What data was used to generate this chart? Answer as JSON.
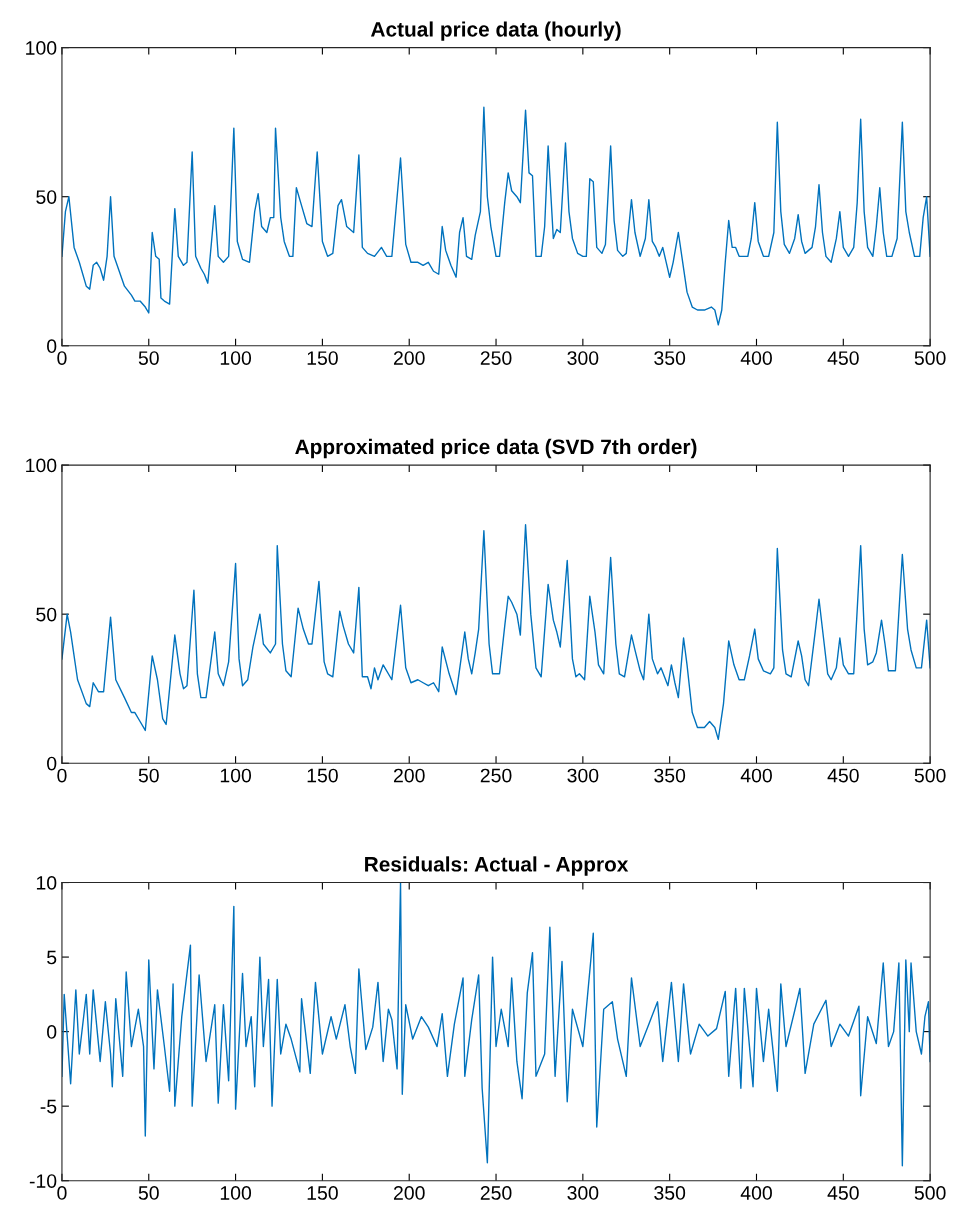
{
  "chart_data": [
    {
      "type": "line",
      "title": "Actual price data (hourly)",
      "xlim": [
        0,
        500
      ],
      "ylim": [
        0,
        100
      ],
      "xticks": [
        0,
        50,
        100,
        150,
        200,
        250,
        300,
        350,
        400,
        450,
        500
      ],
      "yticks": [
        0,
        50,
        100
      ],
      "grid": false,
      "series": [
        {
          "color": "#0072bd",
          "x": [
            0,
            2,
            4,
            7,
            10,
            14,
            16,
            18,
            20,
            22,
            24,
            26,
            28,
            30,
            33,
            36,
            40,
            42,
            45,
            48,
            50,
            52,
            54,
            56,
            57,
            59,
            62,
            65,
            67,
            70,
            72,
            75,
            77,
            80,
            82,
            84,
            88,
            90,
            93,
            96,
            99,
            101,
            104,
            108,
            111,
            113,
            115,
            118,
            120,
            122,
            123,
            126,
            128,
            131,
            133,
            135,
            138,
            141,
            144,
            147,
            150,
            153,
            156,
            159,
            161,
            164,
            168,
            171,
            173,
            176,
            180,
            184,
            187,
            190,
            195,
            198,
            201,
            205,
            208,
            211,
            214,
            217,
            219,
            221,
            224,
            227,
            229,
            231,
            233,
            236,
            238,
            241,
            243,
            245,
            247,
            250,
            252,
            255,
            257,
            259,
            262,
            264,
            267,
            269,
            271,
            273,
            276,
            278,
            280,
            283,
            285,
            287,
            290,
            292,
            294,
            297,
            300,
            302,
            304,
            306,
            308,
            311,
            313,
            316,
            318,
            320,
            323,
            325,
            328,
            330,
            333,
            336,
            338,
            340,
            342,
            344,
            346,
            348,
            350,
            352,
            355,
            357,
            360,
            363,
            366,
            370,
            374,
            376,
            378,
            380,
            382,
            384,
            386,
            388,
            390,
            392,
            395,
            397,
            399,
            401,
            404,
            407,
            410,
            412,
            414,
            416,
            419,
            422,
            424,
            426,
            428,
            432,
            434,
            436,
            438,
            440,
            443,
            446,
            448,
            450,
            453,
            456,
            458,
            460,
            462,
            464,
            467,
            469,
            471,
            473,
            475,
            478,
            481,
            484,
            486,
            488,
            491,
            494,
            496,
            498,
            500
          ],
          "values": [
            30,
            45,
            50,
            33,
            28,
            20,
            19,
            27,
            28,
            26,
            22,
            30,
            50,
            30,
            25,
            20,
            17,
            15,
            15,
            13,
            11,
            38,
            30,
            29,
            16,
            15,
            14,
            46,
            30,
            27,
            28,
            65,
            30,
            26,
            24,
            21,
            47,
            30,
            28,
            30,
            73,
            35,
            29,
            28,
            45,
            51,
            40,
            38,
            43,
            43,
            73,
            43,
            35,
            30,
            30,
            53,
            47,
            41,
            40,
            65,
            35,
            30,
            31,
            47,
            49,
            40,
            38,
            64,
            33,
            31,
            30,
            33,
            30,
            30,
            63,
            34,
            28,
            28,
            27,
            28,
            25,
            24,
            40,
            32,
            27,
            23,
            38,
            43,
            30,
            29,
            37,
            45,
            80,
            50,
            40,
            30,
            30,
            48,
            58,
            52,
            50,
            48,
            79,
            58,
            57,
            30,
            30,
            40,
            67,
            36,
            39,
            38,
            68,
            45,
            36,
            31,
            30,
            30,
            56,
            55,
            33,
            31,
            34,
            67,
            42,
            32,
            30,
            31,
            49,
            38,
            30,
            36,
            49,
            35,
            33,
            30,
            33,
            28,
            23,
            28,
            38,
            30,
            18,
            13,
            12,
            12,
            13,
            12,
            7,
            12,
            28,
            42,
            33,
            33,
            30,
            30,
            30,
            36,
            48,
            35,
            30,
            30,
            38,
            75,
            45,
            34,
            31,
            36,
            44,
            35,
            31,
            33,
            40,
            54,
            38,
            30,
            28,
            36,
            45,
            33,
            30,
            33,
            48,
            76,
            45,
            33,
            30,
            40,
            53,
            38,
            30,
            30,
            36,
            75,
            45,
            38,
            30,
            30,
            43,
            50,
            30
          ]
        }
      ]
    },
    {
      "type": "line",
      "title": "Approximated price data (SVD 7th order)",
      "xlim": [
        0,
        500
      ],
      "ylim": [
        0,
        100
      ],
      "xticks": [
        0,
        50,
        100,
        150,
        200,
        250,
        300,
        350,
        400,
        450,
        500
      ],
      "yticks": [
        0,
        50,
        100
      ],
      "grid": false,
      "series": [
        {
          "color": "#0072bd",
          "x": [
            0,
            3,
            5,
            9,
            14,
            16,
            18,
            21,
            24,
            28,
            31,
            36,
            40,
            42,
            45,
            48,
            52,
            55,
            58,
            60,
            65,
            68,
            70,
            72,
            76,
            78,
            80,
            83,
            88,
            90,
            93,
            96,
            100,
            102,
            104,
            107,
            110,
            114,
            116,
            120,
            123,
            124,
            127,
            129,
            132,
            136,
            139,
            142,
            144,
            148,
            151,
            153,
            156,
            160,
            162,
            165,
            168,
            171,
            173,
            176,
            178,
            180,
            182,
            185,
            190,
            195,
            198,
            201,
            205,
            208,
            211,
            214,
            217,
            219,
            223,
            227,
            232,
            234,
            236,
            238,
            240,
            243,
            246,
            248,
            252,
            255,
            257,
            259,
            262,
            264,
            267,
            270,
            273,
            276,
            280,
            283,
            285,
            287,
            291,
            294,
            296,
            298,
            301,
            304,
            307,
            309,
            312,
            316,
            319,
            321,
            324,
            328,
            330,
            333,
            335,
            338,
            340,
            343,
            345,
            347,
            349,
            351,
            353,
            355,
            358,
            360,
            363,
            366,
            370,
            373,
            376,
            378,
            381,
            384,
            387,
            390,
            393,
            396,
            399,
            401,
            404,
            408,
            410,
            412,
            415,
            417,
            420,
            424,
            426,
            428,
            430,
            434,
            436,
            439,
            441,
            443,
            446,
            448,
            450,
            453,
            456,
            460,
            462,
            464,
            467,
            469,
            472,
            474,
            476,
            480,
            484,
            487,
            489,
            492,
            495,
            498,
            500
          ],
          "values": [
            35,
            50,
            44,
            28,
            20,
            19,
            27,
            24,
            24,
            49,
            28,
            22,
            17,
            17,
            14,
            11,
            36,
            28,
            15,
            13,
            43,
            30,
            25,
            26,
            58,
            30,
            22,
            22,
            44,
            30,
            26,
            34,
            67,
            35,
            26,
            28,
            39,
            50,
            40,
            37,
            40,
            73,
            40,
            31,
            29,
            52,
            45,
            40,
            40,
            61,
            34,
            30,
            29,
            51,
            46,
            40,
            37,
            59,
            29,
            29,
            25,
            32,
            28,
            33,
            28,
            53,
            32,
            27,
            28,
            27,
            26,
            27,
            24,
            39,
            30,
            23,
            44,
            35,
            30,
            37,
            45,
            78,
            40,
            30,
            30,
            46,
            56,
            54,
            50,
            43,
            80,
            50,
            32,
            29,
            60,
            48,
            44,
            39,
            68,
            35,
            29,
            30,
            28,
            56,
            44,
            33,
            30,
            69,
            40,
            30,
            29,
            43,
            38,
            31,
            28,
            50,
            35,
            30,
            32,
            29,
            26,
            33,
            27,
            22,
            42,
            33,
            17,
            12,
            12,
            14,
            12,
            8,
            20,
            41,
            33,
            28,
            28,
            36,
            45,
            35,
            31,
            30,
            32,
            72,
            38,
            30,
            29,
            41,
            36,
            28,
            26,
            45,
            55,
            40,
            30,
            28,
            32,
            42,
            33,
            30,
            30,
            73,
            45,
            33,
            34,
            37,
            48,
            40,
            31,
            31,
            70,
            45,
            38,
            32,
            32,
            48,
            32
          ]
        }
      ]
    },
    {
      "type": "line",
      "title": "Residuals: Actual - Approx",
      "xlim": [
        0,
        500
      ],
      "ylim": [
        -10,
        10
      ],
      "xticks": [
        0,
        50,
        100,
        150,
        200,
        250,
        300,
        350,
        400,
        450,
        500
      ],
      "yticks": [
        -10,
        -5,
        0,
        5,
        10
      ],
      "grid": false,
      "series": [
        {
          "color": "#0072bd",
          "x": [
            0,
            1.3,
            5,
            8,
            10,
            14,
            16,
            18,
            22,
            25,
            28,
            29,
            31,
            35,
            37,
            40,
            44,
            47,
            48,
            50,
            53,
            55,
            59,
            62,
            64,
            65,
            69,
            74,
            75,
            79,
            83,
            88,
            90,
            93,
            96,
            99,
            100,
            104,
            106,
            109,
            111,
            114,
            116,
            119,
            121,
            124,
            126,
            129,
            132,
            137,
            138,
            143,
            146,
            150,
            155,
            158,
            163,
            166,
            169,
            171,
            175,
            179,
            182,
            185,
            188,
            190,
            193,
            195,
            196,
            198,
            202,
            207,
            211,
            216,
            219,
            222,
            226,
            231,
            232,
            236,
            240,
            242,
            245,
            248,
            250,
            253,
            257,
            259,
            262,
            265,
            268,
            271,
            273,
            278,
            281,
            284,
            288,
            291,
            294,
            300,
            306,
            308,
            312,
            317,
            320,
            325,
            328,
            333,
            338,
            343,
            346,
            351,
            355,
            358,
            362,
            367,
            372,
            377,
            382,
            384,
            388,
            391,
            393,
            398,
            400,
            404,
            407,
            412,
            414,
            417,
            422,
            425,
            428,
            433,
            440,
            443,
            448,
            453,
            459,
            460,
            464,
            469,
            473,
            476,
            479,
            482,
            484,
            486,
            488,
            489,
            492,
            495,
            497,
            499,
            500
          ],
          "values": [
            -3,
            2.5,
            -3.5,
            2.8,
            -1.5,
            2.5,
            -1.5,
            2.8,
            -2,
            2,
            -1.5,
            -3.7,
            2.2,
            -3,
            4,
            -1,
            1.5,
            -1,
            -7,
            4.8,
            -2.5,
            2.8,
            -1,
            -4,
            3.2,
            -5,
            1,
            5.8,
            -5,
            3.8,
            -2,
            1.8,
            -4.8,
            1.8,
            -3.3,
            8.4,
            -5.2,
            3.9,
            -1,
            1,
            -3.7,
            5,
            -1,
            3.5,
            -5,
            3.5,
            -1.5,
            0.5,
            -0.5,
            -2.7,
            2.2,
            -2.8,
            3.3,
            -1.5,
            1,
            -0.5,
            1.8,
            -1,
            -2.8,
            4.2,
            -1.2,
            0.3,
            3.3,
            -2,
            1.5,
            0.8,
            -2.5,
            10,
            -4.2,
            1.8,
            -0.5,
            1,
            0.3,
            -1,
            1.2,
            -3,
            0.5,
            3.6,
            -3,
            0.8,
            3.8,
            -3.8,
            -8.8,
            5,
            -1,
            1.5,
            -1,
            3.6,
            -2,
            -4.5,
            2.6,
            5.3,
            -3,
            -1.5,
            7,
            -3,
            4.7,
            -4.7,
            1.5,
            -1,
            6.6,
            -6.4,
            1.5,
            2,
            -0.5,
            -3,
            3.6,
            -1,
            0.5,
            2,
            -2,
            3.3,
            -2,
            3.2,
            -1.5,
            0.5,
            -0.3,
            0.2,
            2.7,
            -3,
            2.9,
            -3.8,
            2.9,
            -3.7,
            2.9,
            -2,
            1.5,
            -4,
            3.2,
            -1,
            1.4,
            2.9,
            -2.8,
            0.5,
            2.1,
            -1,
            0.5,
            -0.3,
            1.7,
            -4.3,
            1,
            -0.8,
            4.6,
            -1,
            0,
            4.6,
            -9,
            4.8,
            0,
            4.6,
            0,
            -1.5,
            1,
            2,
            -2
          ]
        }
      ]
    }
  ]
}
